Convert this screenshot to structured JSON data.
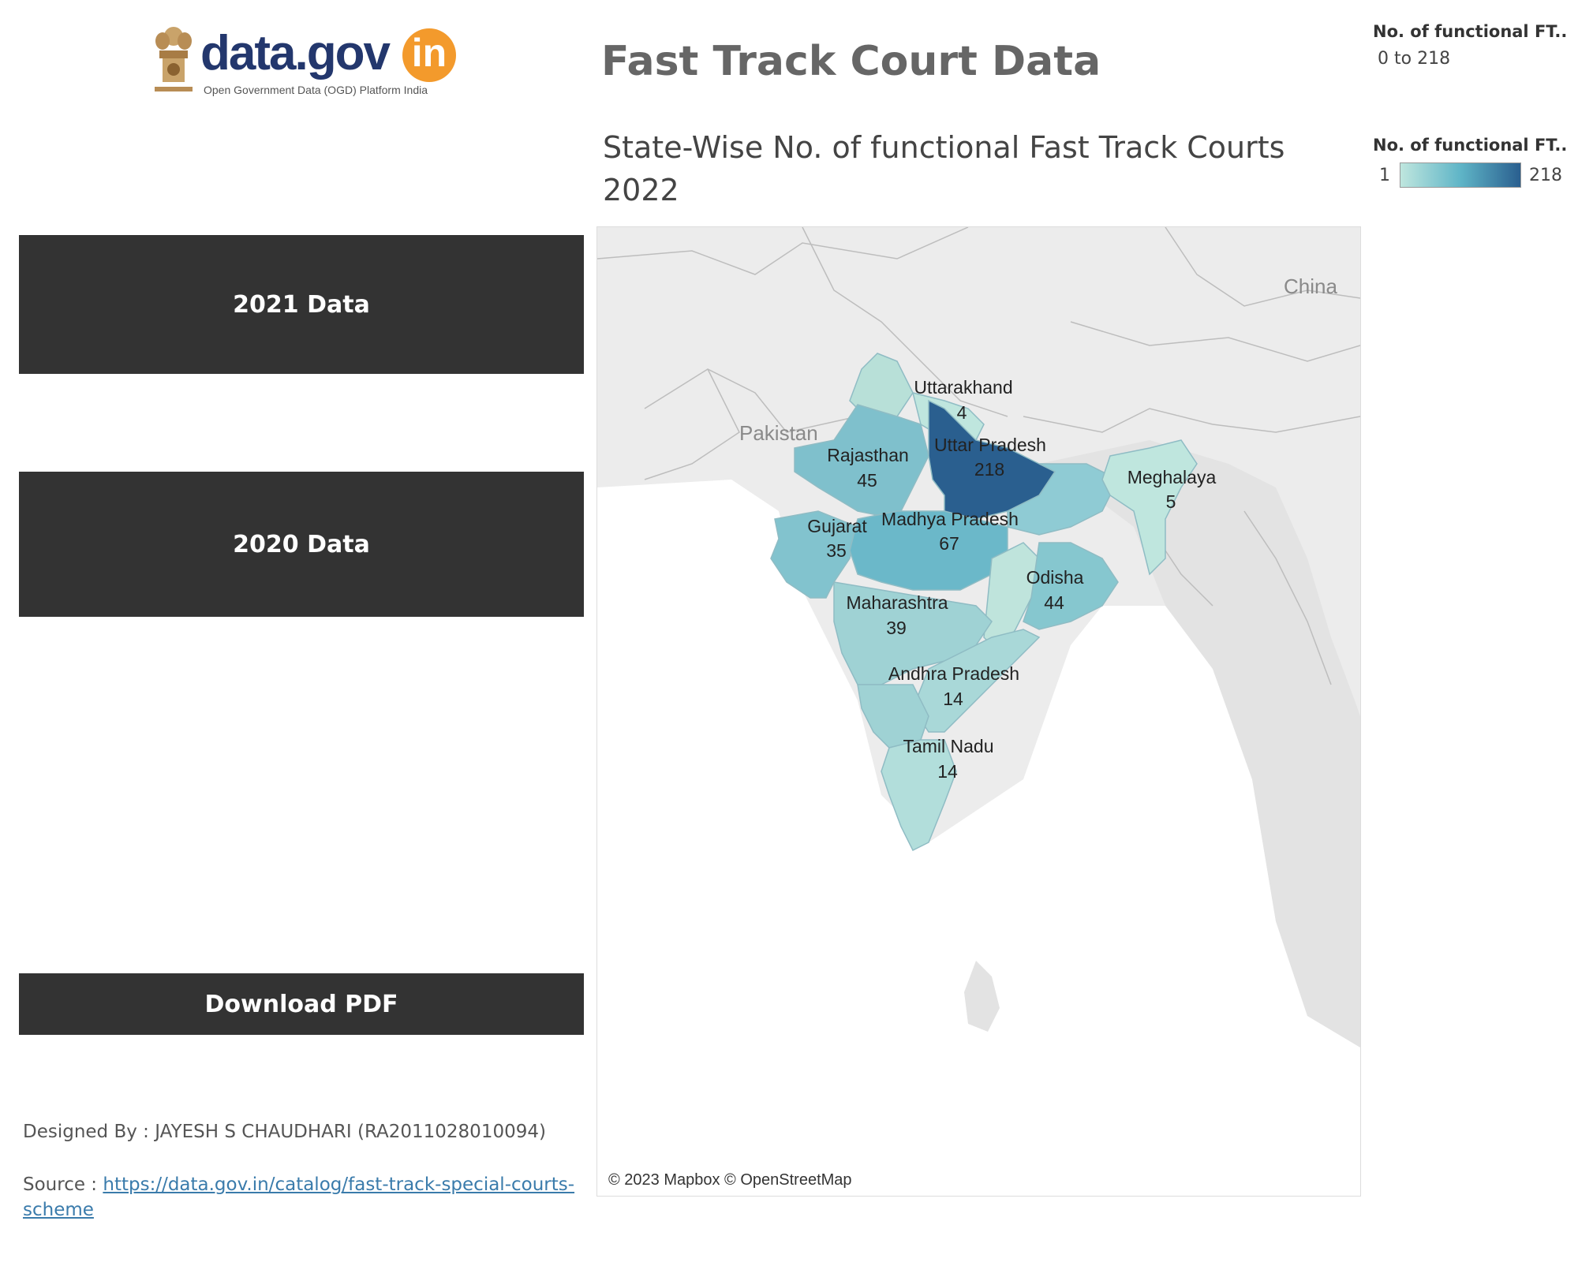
{
  "header": {
    "logo_text": "data.gov",
    "logo_in": "in",
    "logo_subtitle": "Open Government Data (OGD) Platform India",
    "title": "Fast Track Court Data"
  },
  "map": {
    "title": "State-Wise No. of functional  Fast Track Courts 2022",
    "attribution": "© 2023 Mapbox © OpenStreetMap",
    "country_labels": {
      "pakistan": "Pakistan",
      "china": "China"
    },
    "states": [
      {
        "name": "Uttarakhand",
        "value": "4"
      },
      {
        "name": "Uttar Pradesh",
        "value": "218"
      },
      {
        "name": "Rajasthan",
        "value": "45"
      },
      {
        "name": "Meghalaya",
        "value": "5"
      },
      {
        "name": "Gujarat",
        "value": "35"
      },
      {
        "name": "Madhya Pradesh",
        "value": "67"
      },
      {
        "name": "Odisha",
        "value": "44"
      },
      {
        "name": "Maharashtra",
        "value": "39"
      },
      {
        "name": "Andhra Pradesh",
        "value": "14"
      },
      {
        "name": "Tamil Nadu",
        "value": "14"
      }
    ]
  },
  "legends": {
    "size": {
      "title": "No. of functional  FT..",
      "range": "0 to 218"
    },
    "color": {
      "title": "No. of functional  FT..",
      "min": "1",
      "max": "218",
      "colors": [
        "#bfe6de",
        "#5fb5c7",
        "#2a5f8f"
      ]
    }
  },
  "sidebar": {
    "btn_2021": "2021 Data",
    "btn_2020": "2020 Data",
    "download": "Download PDF",
    "designed_by": "Designed By : JAYESH S CHAUDHARI (RA2011028010094)",
    "source_label": "Source : ",
    "source_link": "https://data.gov.in/catalog/fast-track-special-courts-scheme"
  }
}
